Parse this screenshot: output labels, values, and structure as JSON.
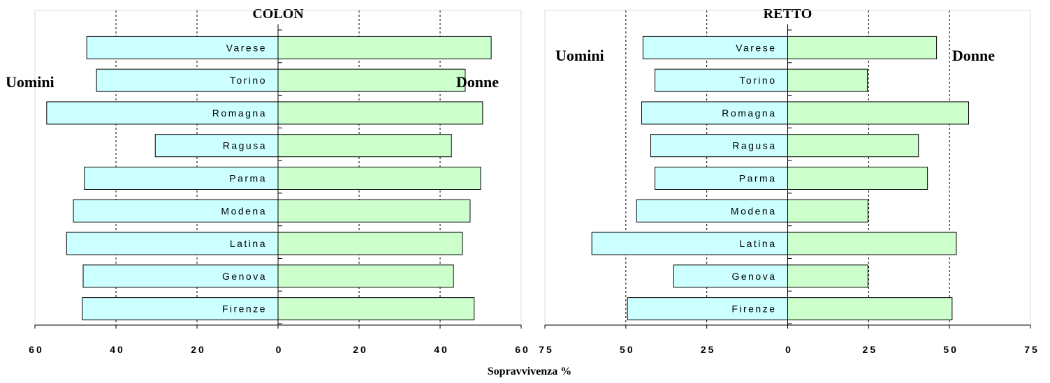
{
  "chart_data": [
    {
      "type": "bar",
      "title": "COLON",
      "categories": [
        "Varese",
        "Torino",
        "Romagna",
        "Ragusa",
        "Parma",
        "Modena",
        "Latina",
        "Genova",
        "Firenze"
      ],
      "series": [
        {
          "name": "Uomini",
          "color": "#ccffff",
          "values": [
            -47.2,
            -44.8,
            -57.1,
            -30.3,
            -47.8,
            -50.5,
            -52.2,
            -48.1,
            -48.3
          ]
        },
        {
          "name": "Donne",
          "color": "#ccffcc",
          "values": [
            52.6,
            46.2,
            50.5,
            42.8,
            50.0,
            47.4,
            45.5,
            43.3,
            48.4
          ]
        }
      ],
      "xlim": [
        -60,
        60
      ],
      "xticks": [
        {
          "value": -60,
          "label": "60"
        },
        {
          "value": -40,
          "label": "40"
        },
        {
          "value": -20,
          "label": "20"
        },
        0,
        20,
        40,
        60
      ],
      "grid": true
    },
    {
      "type": "bar",
      "title": "RETTO",
      "categories": [
        "Varese",
        "Torino",
        "Romagna",
        "Ragusa",
        "Parma",
        "Modena",
        "Latina",
        "Genova",
        "Firenze"
      ],
      "series": [
        {
          "name": "Uomini",
          "color": "#ccffff",
          "values": [
            -44.7,
            -41.0,
            -45.1,
            -42.3,
            -41.0,
            -46.7,
            -60.5,
            -35.2,
            -49.5
          ]
        },
        {
          "name": "Donne",
          "color": "#ccffcc",
          "values": [
            46.0,
            24.6,
            55.9,
            40.4,
            43.2,
            24.8,
            52.1,
            24.8,
            50.8
          ]
        }
      ],
      "xlim": [
        -75,
        75
      ],
      "xticks": [
        {
          "value": -75,
          "label": "75"
        },
        {
          "value": -50,
          "label": "50"
        },
        {
          "value": -25,
          "label": "25"
        },
        0,
        25,
        50,
        75
      ],
      "grid": true
    }
  ],
  "x_label": "Sopravvivenza %"
}
